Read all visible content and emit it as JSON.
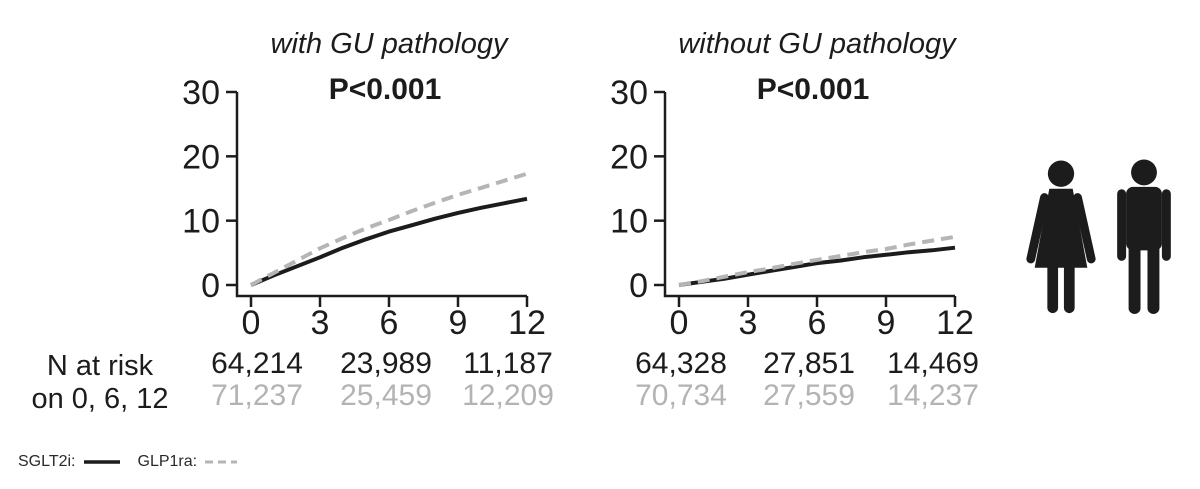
{
  "figure": {
    "background": "#ffffff",
    "colors": {
      "black": "#1c1c1c",
      "gray": "#b5b5b5"
    }
  },
  "risk_label": {
    "line1": "N at risk",
    "line2": "on 0, 6, 12"
  },
  "legend": {
    "items": [
      {
        "label": "SGLT2i:",
        "style": "solid",
        "color": "#1c1c1c"
      },
      {
        "label": "GLP1ra:",
        "style": "dashed",
        "color": "#b5b5b5"
      }
    ]
  },
  "icons": {
    "color": "#1c1c1c",
    "items": [
      {
        "name": "female-icon"
      },
      {
        "name": "male-icon"
      }
    ]
  },
  "chart_data": [
    {
      "type": "line",
      "title": "with GU pathology",
      "p_value": "P<0.001",
      "xlabel": "",
      "ylabel": "",
      "xlim": [
        0,
        12
      ],
      "ylim": [
        0,
        30
      ],
      "xticks": [
        0,
        3,
        6,
        9,
        12
      ],
      "yticks": [
        0,
        10,
        20,
        30
      ],
      "grid": false,
      "x": [
        0,
        1,
        2,
        3,
        4,
        5,
        6,
        7,
        8,
        9,
        10,
        11,
        12
      ],
      "series": [
        {
          "name": "SGLT2i",
          "style": "solid",
          "color": "#1c1c1c",
          "values": [
            0,
            1.5,
            2.9,
            4.3,
            5.8,
            7.1,
            8.3,
            9.3,
            10.3,
            11.2,
            12.0,
            12.7,
            13.4
          ]
        },
        {
          "name": "GLP1ra",
          "style": "dashed",
          "color": "#b5b5b5",
          "values": [
            0,
            1.9,
            3.8,
            5.7,
            7.3,
            8.8,
            10.1,
            11.5,
            12.8,
            14.0,
            15.1,
            16.2,
            17.3
          ]
        }
      ],
      "n_at_risk": {
        "times": [
          0,
          6,
          12
        ],
        "rows": [
          {
            "name": "SGLT2i",
            "color": "#1c1c1c",
            "values": [
              "64,214",
              "23,989",
              "11,187"
            ]
          },
          {
            "name": "GLP1ra",
            "color": "#b3b3b3",
            "values": [
              "71,237",
              "25,459",
              "12,209"
            ]
          }
        ]
      }
    },
    {
      "type": "line",
      "title": "without GU pathology",
      "p_value": "P<0.001",
      "xlabel": "",
      "ylabel": "",
      "xlim": [
        0,
        12
      ],
      "ylim": [
        0,
        30
      ],
      "xticks": [
        0,
        3,
        6,
        9,
        12
      ],
      "yticks": [
        0,
        10,
        20,
        30
      ],
      "grid": false,
      "x": [
        0,
        1,
        2,
        3,
        4,
        5,
        6,
        7,
        8,
        9,
        10,
        11,
        12
      ],
      "series": [
        {
          "name": "SGLT2i",
          "style": "solid",
          "color": "#1c1c1c",
          "values": [
            0,
            0.5,
            1.0,
            1.6,
            2.2,
            2.8,
            3.4,
            3.8,
            4.3,
            4.7,
            5.1,
            5.4,
            5.8
          ]
        },
        {
          "name": "GLP1ra",
          "style": "dashed",
          "color": "#b5b5b5",
          "values": [
            0,
            0.6,
            1.3,
            2.0,
            2.6,
            3.3,
            3.9,
            4.5,
            5.1,
            5.6,
            6.3,
            6.9,
            7.5
          ]
        }
      ],
      "n_at_risk": {
        "times": [
          0,
          6,
          12
        ],
        "rows": [
          {
            "name": "SGLT2i",
            "color": "#1c1c1c",
            "values": [
              "64,328",
              "27,851",
              "14,469"
            ]
          },
          {
            "name": "GLP1ra",
            "color": "#b3b3b3",
            "values": [
              "70,734",
              "27,559",
              "14,237"
            ]
          }
        ]
      }
    }
  ]
}
